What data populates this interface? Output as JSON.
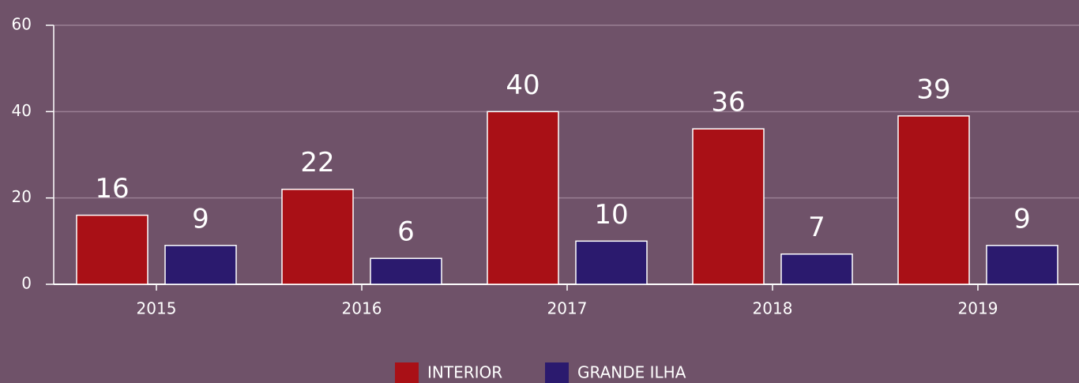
{
  "chart_data": {
    "type": "bar",
    "categories": [
      "2015",
      "2016",
      "2017",
      "2018",
      "2019"
    ],
    "series": [
      {
        "name": "INTERIOR",
        "color": "#a91016",
        "values": [
          16,
          22,
          40,
          36,
          39
        ]
      },
      {
        "name": "GRANDE ILHA",
        "color": "#2b1a6e",
        "values": [
          9,
          6,
          10,
          7,
          9
        ]
      }
    ],
    "ylim": [
      0,
      60
    ],
    "yticks": [
      0,
      20,
      40,
      60
    ],
    "grid": true,
    "legend": "bottom"
  }
}
